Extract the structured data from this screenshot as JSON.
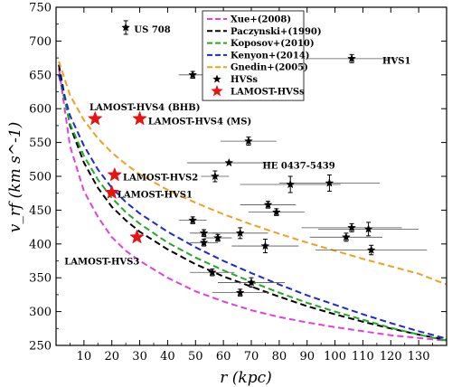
{
  "chart_data": {
    "type": "scatter",
    "xlabel": "r (kpc)",
    "ylabel": "v_rf (km s^-1)",
    "xlim": [
      0,
      140
    ],
    "ylim": [
      250,
      750
    ],
    "x_ticks": [
      10,
      20,
      30,
      40,
      50,
      60,
      70,
      80,
      90,
      100,
      110,
      120,
      130
    ],
    "y_ticks": [
      250,
      300,
      350,
      400,
      450,
      500,
      550,
      600,
      650,
      700,
      750
    ],
    "curves": [
      {
        "name": "Xue+(2008)",
        "color": "#e040e0",
        "x": [
          1,
          5,
          10,
          15,
          20,
          25,
          30,
          40,
          50,
          60,
          70,
          80,
          90,
          100,
          110,
          120,
          130,
          140
        ],
        "y": [
          660,
          545,
          478,
          440,
          410,
          390,
          375,
          350,
          330,
          315,
          302,
          292,
          284,
          277,
          271,
          265,
          261,
          257
        ]
      },
      {
        "name": "Paczynski+(1990)",
        "color": "#000000",
        "x": [
          1,
          5,
          10,
          15,
          20,
          25,
          30,
          40,
          50,
          60,
          70,
          80,
          90,
          100,
          110,
          120,
          130,
          140
        ],
        "y": [
          665,
          575,
          520,
          483,
          455,
          435,
          418,
          392,
          370,
          352,
          337,
          322,
          308,
          296,
          285,
          275,
          266,
          258
        ]
      },
      {
        "name": "Koposov+(2010)",
        "color": "#22aa22",
        "x": [
          1,
          5,
          10,
          15,
          20,
          25,
          30,
          40,
          50,
          60,
          70,
          80,
          90,
          100,
          110,
          120,
          130,
          140
        ],
        "y": [
          650,
          578,
          530,
          495,
          468,
          447,
          430,
          402,
          380,
          361,
          344,
          328,
          313,
          300,
          288,
          276,
          266,
          257
        ]
      },
      {
        "name": "Kenyon+(2014)",
        "color": "#1a2ad0",
        "x": [
          1,
          5,
          10,
          15,
          20,
          25,
          30,
          40,
          50,
          60,
          70,
          80,
          90,
          100,
          110,
          120,
          130,
          140
        ],
        "y": [
          650,
          590,
          545,
          510,
          483,
          462,
          445,
          418,
          395,
          375,
          357,
          340,
          324,
          310,
          296,
          283,
          271,
          260
        ]
      },
      {
        "name": "Gnedin+(2005)",
        "color": "#f0a020",
        "x": [
          1,
          5,
          10,
          15,
          20,
          25,
          30,
          40,
          50,
          60,
          70,
          80,
          90,
          100,
          110,
          120,
          130,
          140
        ],
        "y": [
          670,
          620,
          583,
          556,
          535,
          518,
          503,
          480,
          461,
          444,
          429,
          415,
          402,
          390,
          378,
          367,
          356,
          340
        ]
      }
    ],
    "series": [
      {
        "name": "HVSs",
        "marker": "star",
        "color": "#000000",
        "points": [
          {
            "x": 25,
            "y": 720,
            "xerr": 1,
            "yerr": 10
          },
          {
            "x": 49,
            "y": 650,
            "xerr": 5,
            "yerr": 5
          },
          {
            "x": 106,
            "y": 674,
            "xerr": 16,
            "yerr": 6
          },
          {
            "x": 69,
            "y": 552,
            "xerr": 10,
            "yerr": 6
          },
          {
            "x": 62,
            "y": 520,
            "xerr": 15,
            "yerr": 0
          },
          {
            "x": 57,
            "y": 500,
            "xerr": 5,
            "yerr": 8
          },
          {
            "x": 84,
            "y": 488,
            "xerr": 18,
            "yerr": 12
          },
          {
            "x": 98,
            "y": 490,
            "xerr": 18,
            "yerr": 12
          },
          {
            "x": 76,
            "y": 458,
            "xerr": 10,
            "yerr": 5
          },
          {
            "x": 79,
            "y": 447,
            "xerr": 10,
            "yerr": 5
          },
          {
            "x": 49,
            "y": 435,
            "xerr": 5,
            "yerr": 5
          },
          {
            "x": 53,
            "y": 416,
            "xerr": 5,
            "yerr": 5
          },
          {
            "x": 58,
            "y": 409,
            "xerr": 5,
            "yerr": 5
          },
          {
            "x": 53,
            "y": 402,
            "xerr": 5,
            "yerr": 5
          },
          {
            "x": 66,
            "y": 416,
            "xerr": 10,
            "yerr": 8
          },
          {
            "x": 75,
            "y": 397,
            "xerr": 12,
            "yerr": 10
          },
          {
            "x": 106,
            "y": 424,
            "xerr": 18,
            "yerr": 6
          },
          {
            "x": 112,
            "y": 422,
            "xerr": 18,
            "yerr": 10
          },
          {
            "x": 104,
            "y": 410,
            "xerr": 13,
            "yerr": 6
          },
          {
            "x": 113,
            "y": 391,
            "xerr": 20,
            "yerr": 7
          },
          {
            "x": 56,
            "y": 358,
            "xerr": 8,
            "yerr": 5
          },
          {
            "x": 70,
            "y": 343,
            "xerr": 12,
            "yerr": 7
          },
          {
            "x": 66,
            "y": 328,
            "xerr": 10,
            "yerr": 5
          }
        ]
      },
      {
        "name": "LAMOST-HVSs",
        "marker": "star",
        "color": "#ee1111",
        "points": [
          {
            "x": 14,
            "y": 585
          },
          {
            "x": 30,
            "y": 585
          },
          {
            "x": 21,
            "y": 502
          },
          {
            "x": 20,
            "y": 476
          },
          {
            "x": 29,
            "y": 410
          }
        ]
      }
    ],
    "annotations": [
      {
        "text": "US 708",
        "x": 28,
        "y": 718
      },
      {
        "text": "HVS1",
        "x": 117,
        "y": 672
      },
      {
        "text": "LAMOST-HVS4 (BHB)",
        "x": 12,
        "y": 603
      },
      {
        "text": "LAMOST-HVS4 (MS)",
        "x": 33,
        "y": 582
      },
      {
        "text": "HE 0437-5439",
        "x": 74,
        "y": 517
      },
      {
        "text": "LAMOST-HVS2",
        "x": 24,
        "y": 499
      },
      {
        "text": "LAMOST-HVS1",
        "x": 22,
        "y": 474
      },
      {
        "text": "LAMOST-HVS3",
        "x": 3,
        "y": 375
      }
    ],
    "legend_position": "top-center"
  }
}
